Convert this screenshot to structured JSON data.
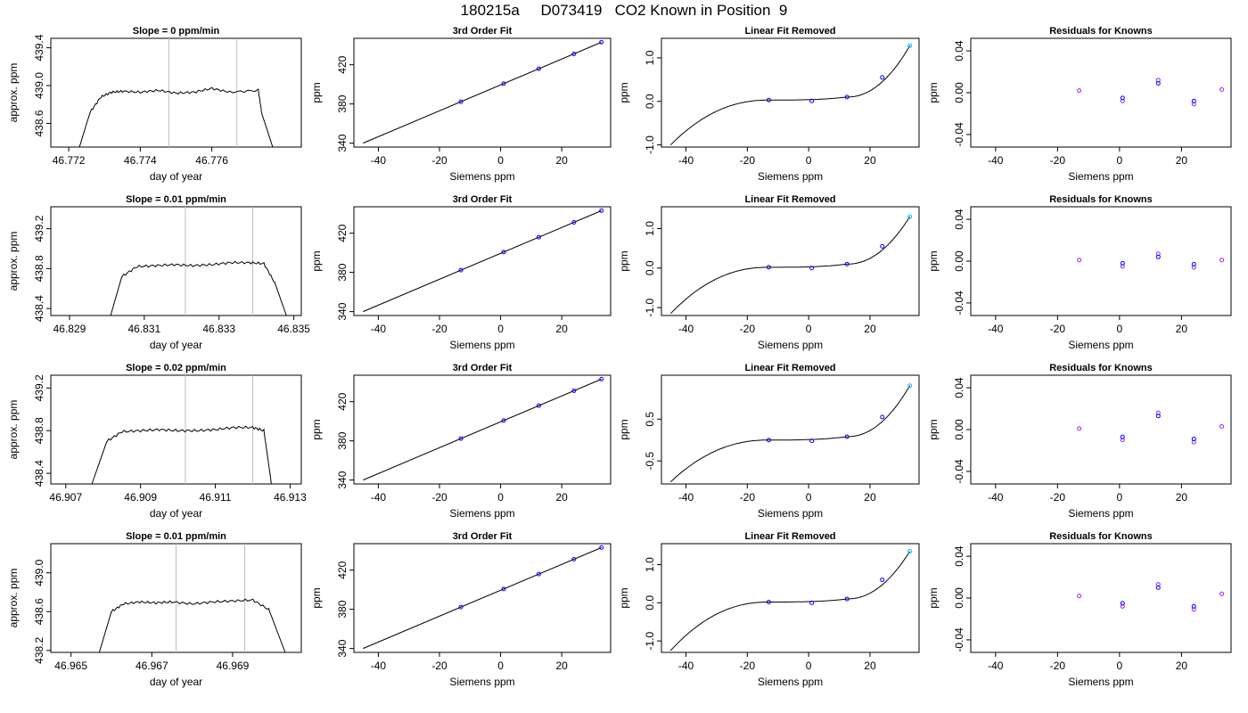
{
  "title": "180215a     D073419   CO2 Known in Position  9",
  "rows": [
    {
      "trace": {
        "type": "line",
        "title": "Slope =  0  ppm/min",
        "xlabel": "day of year",
        "ylabel": "approx. ppm",
        "xlim": [
          46.7715,
          46.7785
        ],
        "ylim": [
          438.35,
          439.5
        ],
        "xticks": [
          "46.772",
          "46.774",
          "46.776"
        ],
        "xtick_values": [
          46.772,
          46.774,
          46.776
        ],
        "yticks": [
          "438.6",
          "439.0",
          "439.4"
        ],
        "ytick_values": [
          438.6,
          439.0,
          439.4
        ],
        "x": [
          46.7723,
          46.7726,
          46.7729,
          46.7732,
          46.7735,
          46.774,
          46.7745,
          46.775,
          46.7755,
          46.776,
          46.7765,
          46.7773,
          46.7774,
          46.7777
        ],
        "y": [
          438.35,
          438.72,
          438.88,
          438.93,
          438.94,
          438.93,
          438.95,
          438.92,
          438.93,
          438.97,
          438.93,
          438.95,
          438.7,
          438.35
        ],
        "vlines": [
          46.7748,
          46.7767
        ]
      },
      "fit": {
        "type": "line",
        "title": "3rd Order Fit",
        "xlabel": "Siemens ppm",
        "ylabel": "ppm",
        "yticks": [
          "340",
          "380",
          "420"
        ],
        "ytick_values": [
          340,
          380,
          420
        ],
        "ylim": [
          336,
          447
        ]
      },
      "linear": {
        "type": "line",
        "title": "Linear Fit Removed",
        "xlabel": "Siemens ppm",
        "ylabel": "ppm",
        "yticks": [
          "-1.0",
          "0.0",
          "1.0"
        ],
        "ytick_values": [
          -1.0,
          0.0,
          1.0
        ],
        "ylim": [
          -1.05,
          1.45
        ],
        "pts": [
          0.03,
          0.01,
          0.1,
          0.55,
          1.28
        ]
      },
      "resid": {
        "type": "scatter",
        "title": "Residuals for Knowns",
        "xlabel": "Siemens ppm",
        "ylabel": "ppm",
        "yticks": [
          "-0.04",
          "0.00",
          "0.04"
        ],
        "ytick_values": [
          -0.04,
          0.0,
          0.04
        ],
        "ylim": [
          -0.052,
          0.052
        ],
        "pts": [
          0.002,
          -0.008,
          0.012,
          -0.011,
          0.003
        ]
      }
    },
    {
      "trace": {
        "type": "line",
        "title": "Slope =  0.01  ppm/min",
        "xlabel": "day of year",
        "ylabel": "approx. ppm",
        "xlim": [
          46.8285,
          46.8352
        ],
        "ylim": [
          438.33,
          439.42
        ],
        "xticks": [
          "46.829",
          "46.831",
          "46.833",
          "46.835"
        ],
        "xtick_values": [
          46.829,
          46.831,
          46.833,
          46.835
        ],
        "yticks": [
          "438.4",
          "438.8",
          "439.2"
        ],
        "ytick_values": [
          438.4,
          438.8,
          439.2
        ],
        "x": [
          46.8301,
          46.8304,
          46.8308,
          46.8313,
          46.8318,
          46.8323,
          46.8328,
          46.8333,
          46.8338,
          46.8342,
          46.8345,
          46.8348
        ],
        "y": [
          438.33,
          438.72,
          438.82,
          438.83,
          438.84,
          438.83,
          438.84,
          438.86,
          438.86,
          438.85,
          438.65,
          438.33
        ],
        "vlines": [
          46.8321,
          46.8339
        ]
      },
      "fit": {
        "type": "line",
        "title": "3rd Order Fit",
        "xlabel": "Siemens ppm",
        "ylabel": "ppm",
        "yticks": [
          "340",
          "380",
          "420"
        ],
        "ytick_values": [
          340,
          380,
          420
        ],
        "ylim": [
          336,
          447
        ]
      },
      "linear": {
        "type": "line",
        "title": "Linear Fit Removed",
        "xlabel": "Siemens ppm",
        "ylabel": "ppm",
        "yticks": [
          "-1.0",
          "0.0",
          "1.0"
        ],
        "ytick_values": [
          -1.0,
          0.0,
          1.0
        ],
        "ylim": [
          -1.2,
          1.55
        ],
        "pts": [
          0.02,
          0.0,
          0.1,
          0.55,
          1.3
        ]
      },
      "resid": {
        "type": "scatter",
        "title": "Residuals for Knowns",
        "xlabel": "Siemens ppm",
        "ylabel": "ppm",
        "yticks": [
          "-0.04",
          "0.00",
          "0.04"
        ],
        "ytick_values": [
          -0.04,
          0.0,
          0.04
        ],
        "ylim": [
          -0.052,
          0.052
        ],
        "pts": [
          0.001,
          -0.005,
          0.007,
          -0.006,
          0.001
        ]
      }
    },
    {
      "trace": {
        "type": "line",
        "title": "Slope =  0.02  ppm/min",
        "xlabel": "day of year",
        "ylabel": "approx. ppm",
        "xlim": [
          46.9066,
          46.9133
        ],
        "ylim": [
          438.3,
          439.32
        ],
        "xticks": [
          "46.907",
          "46.909",
          "46.911",
          "46.913"
        ],
        "xtick_values": [
          46.907,
          46.909,
          46.911,
          46.913
        ],
        "yticks": [
          "438.4",
          "438.8",
          "439.2"
        ],
        "ytick_values": [
          438.4,
          438.8,
          439.2
        ],
        "x": [
          46.9077,
          46.9081,
          46.9085,
          46.909,
          46.9095,
          46.91,
          46.9105,
          46.911,
          46.9115,
          46.912,
          46.9123,
          46.9125
        ],
        "y": [
          438.3,
          438.7,
          438.79,
          438.8,
          438.81,
          438.8,
          438.8,
          438.81,
          438.83,
          438.83,
          438.8,
          438.3
        ],
        "vlines": [
          46.9102,
          46.912
        ]
      },
      "fit": {
        "type": "line",
        "title": "3rd Order Fit",
        "xlabel": "Siemens ppm",
        "ylabel": "ppm",
        "yticks": [
          "340",
          "380",
          "420"
        ],
        "ytick_values": [
          340,
          380,
          420
        ],
        "ylim": [
          336,
          447
        ]
      },
      "linear": {
        "type": "line",
        "title": "Linear Fit Removed",
        "xlabel": "Siemens ppm",
        "ylabel": "ppm",
        "yticks": [
          "-0.5",
          "0.5"
        ],
        "ytick_values": [
          -0.5,
          0.5
        ],
        "ylim": [
          -1.05,
          1.55
        ],
        "pts": [
          0.0,
          -0.02,
          0.08,
          0.55,
          1.3
        ]
      },
      "resid": {
        "type": "scatter",
        "title": "Residuals for Knowns",
        "xlabel": "Siemens ppm",
        "ylabel": "ppm",
        "yticks": [
          "-0.04",
          "0.00",
          "0.04"
        ],
        "ytick_values": [
          -0.04,
          0.0,
          0.04
        ],
        "ylim": [
          -0.052,
          0.052
        ],
        "pts": [
          0.001,
          -0.01,
          0.016,
          -0.012,
          0.003
        ]
      }
    },
    {
      "trace": {
        "type": "line",
        "title": "Slope =  0.01  ppm/min",
        "xlabel": "day of year",
        "ylabel": "approx. ppm",
        "xlim": [
          46.9645,
          46.9707
        ],
        "ylim": [
          438.18,
          439.3
        ],
        "xticks": [
          "46.965",
          "46.967",
          "46.969"
        ],
        "xtick_values": [
          46.965,
          46.967,
          46.969
        ],
        "yticks": [
          "438.2",
          "438.6",
          "439.0"
        ],
        "ytick_values": [
          438.2,
          438.6,
          439.0
        ],
        "x": [
          46.9657,
          46.966,
          46.9663,
          46.9667,
          46.9671,
          46.9675,
          46.968,
          46.9685,
          46.969,
          46.9695,
          46.9699,
          46.9703
        ],
        "y": [
          438.18,
          438.6,
          438.68,
          438.7,
          438.69,
          438.7,
          438.68,
          438.7,
          438.71,
          438.72,
          438.62,
          438.18
        ],
        "vlines": [
          46.9676,
          46.9693
        ]
      },
      "fit": {
        "type": "line",
        "title": "3rd Order Fit",
        "xlabel": "Siemens ppm",
        "ylabel": "ppm",
        "yticks": [
          "340",
          "380",
          "420"
        ],
        "ytick_values": [
          340,
          380,
          420
        ],
        "ylim": [
          336,
          447
        ]
      },
      "linear": {
        "type": "line",
        "title": "Linear Fit Removed",
        "xlabel": "Siemens ppm",
        "ylabel": "ppm",
        "yticks": [
          "-1.0",
          "0.0",
          "1.0"
        ],
        "ytick_values": [
          -1.0,
          0.0,
          1.0
        ],
        "ylim": [
          -1.3,
          1.55
        ],
        "pts": [
          0.02,
          0.0,
          0.1,
          0.6,
          1.35
        ]
      },
      "resid": {
        "type": "scatter",
        "title": "Residuals for Knowns",
        "xlabel": "Siemens ppm",
        "ylabel": "ppm",
        "yticks": [
          "-0.04",
          "0.00",
          "0.04"
        ],
        "ytick_values": [
          -0.04,
          0.0,
          0.04
        ],
        "ylim": [
          -0.052,
          0.052
        ],
        "pts": [
          0.002,
          -0.008,
          0.013,
          -0.011,
          0.004
        ]
      }
    }
  ],
  "shared": {
    "siemens_xlim": [
      -48,
      36
    ],
    "siemens_xticks": [
      "-40",
      "-20",
      "0",
      "20"
    ],
    "siemens_xtick_values": [
      -40,
      -20,
      0,
      20
    ],
    "knowns_x": [
      -13,
      1,
      12.5,
      24,
      33
    ],
    "fit_line_x": [
      -45,
      33
    ],
    "fit_line_y": [
      340,
      443
    ],
    "colors": {
      "line": "#000000",
      "vline": "#bebebe",
      "points": "#0000ff",
      "points_alt": "#a020f0",
      "points_light": "#00bfff"
    }
  }
}
